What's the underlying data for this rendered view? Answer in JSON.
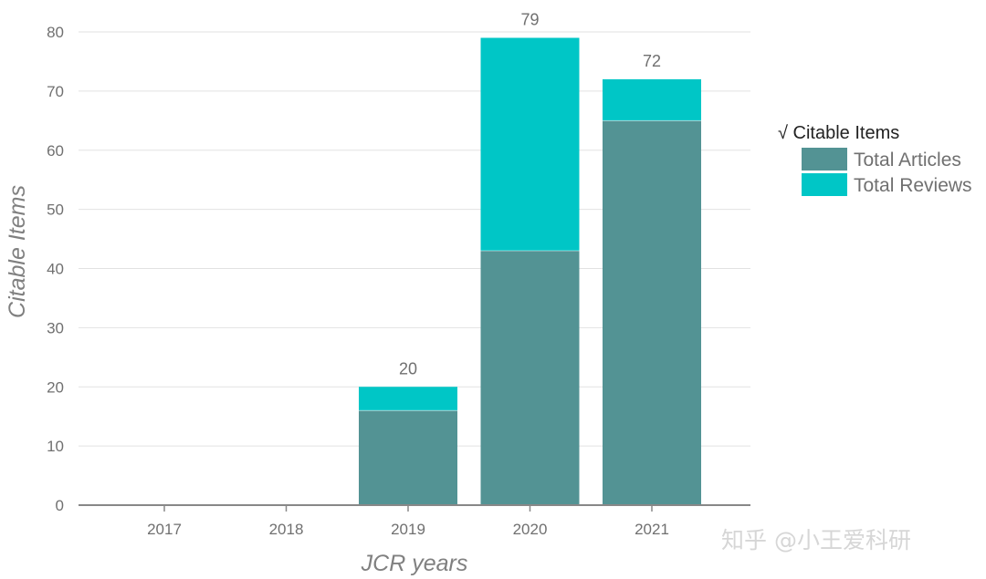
{
  "chart_data": {
    "type": "bar",
    "stacked": true,
    "categories": [
      "2017",
      "2018",
      "2019",
      "2020",
      "2021"
    ],
    "series": [
      {
        "name": "Total Articles",
        "values": [
          0,
          0,
          16,
          43,
          65
        ],
        "color": "#539394"
      },
      {
        "name": "Total Reviews",
        "values": [
          0,
          0,
          4,
          36,
          7
        ],
        "color": "#00c6c6"
      }
    ],
    "totals": [
      "",
      "",
      "20",
      "79",
      "72"
    ],
    "xlabel": "JCR years",
    "ylabel": "Citable Items",
    "ylim": [
      0,
      80
    ],
    "yticks": [
      0,
      10,
      20,
      30,
      40,
      50,
      60,
      70,
      80
    ],
    "grid": true,
    "legend": {
      "title": "√ Citable Items",
      "placement": "right"
    }
  },
  "watermark": "知乎 @小王爱科研"
}
